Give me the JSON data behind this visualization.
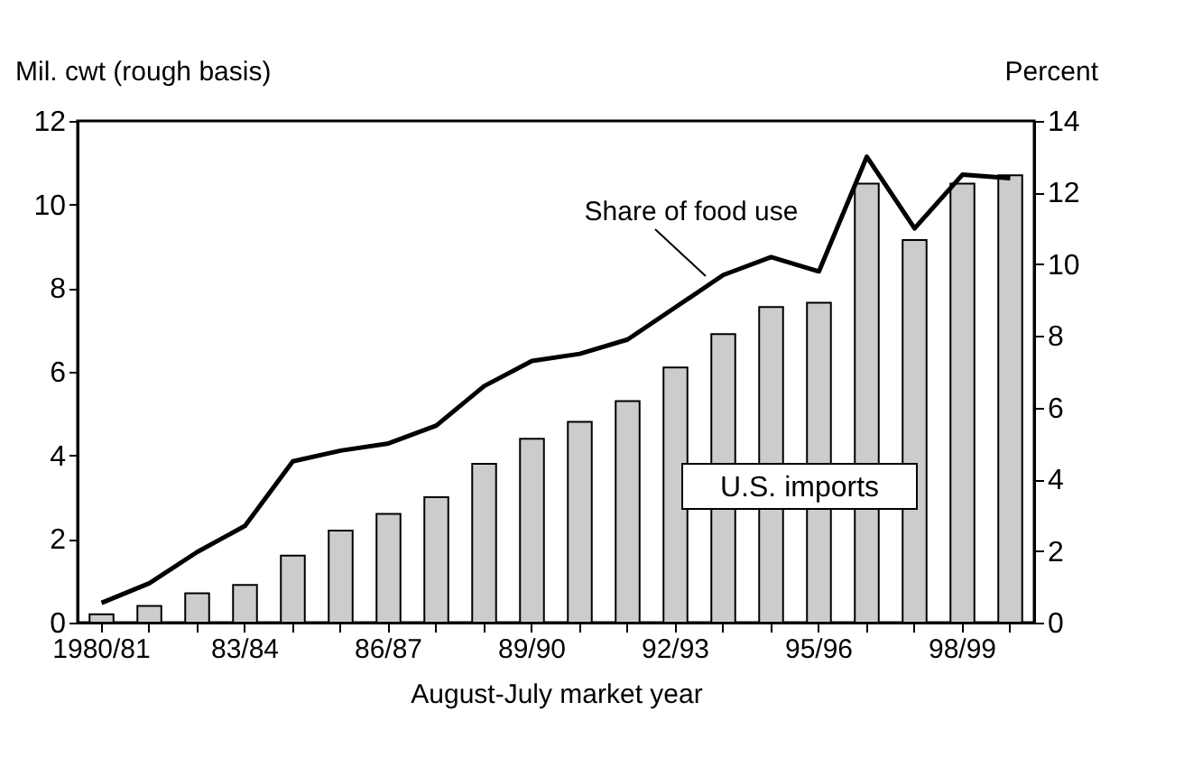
{
  "chart_data": {
    "type": "bar",
    "categories": [
      "1980/81",
      null,
      null,
      "83/84",
      null,
      null,
      "86/87",
      null,
      null,
      "89/90",
      null,
      null,
      "92/93",
      null,
      null,
      "95/96",
      null,
      null,
      "98/99",
      null
    ],
    "series": [
      {
        "name": "U.S. imports",
        "color": "#cccccc",
        "values": [
          0.2,
          0.4,
          0.7,
          0.9,
          1.6,
          2.2,
          2.6,
          3.0,
          3.8,
          4.4,
          4.8,
          5.3,
          6.1,
          6.9,
          7.55,
          7.65,
          10.5,
          9.15,
          10.5,
          10.7
        ]
      },
      {
        "name": "Share of food use",
        "type": "line",
        "axis": "y2",
        "color": "#000000",
        "values": [
          0.55,
          1.1,
          1.97,
          2.7,
          4.5,
          4.8,
          5.0,
          5.5,
          6.6,
          7.3,
          7.5,
          7.9,
          8.8,
          9.7,
          10.2,
          9.8,
          13.0,
          11.0,
          12.5,
          12.4
        ]
      }
    ],
    "xlabel": "August-July market year",
    "ylabel": "Mil. cwt (rough basis)",
    "y2label": "Percent",
    "ylim": [
      0,
      12
    ],
    "yticks": [
      0,
      2,
      4,
      6,
      8,
      10,
      12
    ],
    "y2lim": [
      0,
      14
    ],
    "y2ticks": [
      0,
      2,
      4,
      6,
      8,
      10,
      12,
      14
    ],
    "legend": false,
    "grid": false
  }
}
